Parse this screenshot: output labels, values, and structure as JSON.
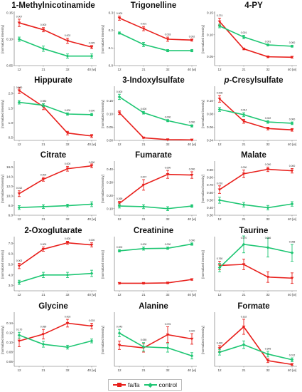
{
  "colors": {
    "fafa": "#e8201c",
    "control": "#1ec673"
  },
  "legend": {
    "fafa": "fa/fa",
    "control": "control"
  },
  "chart_data": [
    {
      "type": "line",
      "title": "1-Methylnicotinamide",
      "ylabel": "[normalized intensity]",
      "x": [
        "12",
        "21",
        "32",
        "40 [w]"
      ],
      "ylim": [
        0.05,
        0.15
      ],
      "yticks": [
        "0.05",
        "0.10",
        "0.15"
      ],
      "pvalues": [
        "0.007",
        "0.000",
        "0.002",
        "0.025"
      ],
      "series": [
        {
          "name": "fa/fa",
          "values": [
            0.131,
            0.118,
            0.097,
            0.085
          ],
          "err": [
            0.007,
            0.004,
            0.005,
            0.003
          ]
        },
        {
          "name": "control",
          "values": [
            0.1,
            0.082,
            0.068,
            0.068
          ],
          "err": [
            0.004,
            0.005,
            0.004,
            0.004
          ]
        }
      ]
    },
    {
      "type": "line",
      "title": "Trigonelline",
      "ylabel": "[normalized intensity]",
      "x": [
        "12",
        "21",
        "32",
        "40 [w]"
      ],
      "ylim": [
        0.0,
        0.3
      ],
      "yticks": [
        "0.0",
        "0.1",
        "0.2",
        "0.3"
      ],
      "pvalues": [
        "0.000",
        "0.001",
        "0.018",
        "0.002"
      ],
      "series": [
        {
          "name": "fa/fa",
          "values": [
            0.27,
            0.21,
            0.15,
            0.145
          ],
          "err": [
            0.012,
            0.012,
            0.012,
            0.006
          ]
        },
        {
          "name": "control",
          "values": [
            0.185,
            0.12,
            0.085,
            0.085
          ],
          "err": [
            0.006,
            0.012,
            0.006,
            0.006
          ]
        }
      ]
    },
    {
      "type": "line",
      "title": "4-PY",
      "ylabel": "[normalized intensity]",
      "x": [
        "12",
        "21",
        "32",
        "40 [w]"
      ],
      "ylim": [
        0.03,
        0.15
      ],
      "yticks": [
        "0.05",
        "0.10",
        "0.15"
      ],
      "pvalues": [
        "0.274",
        "0.001",
        "0.001",
        "0.000"
      ],
      "series": [
        {
          "name": "fa/fa",
          "values": [
            0.13,
            0.068,
            0.05,
            0.049
          ],
          "err": [
            0.008,
            0.002,
            0.002,
            0.002
          ]
        },
        {
          "name": "control",
          "values": [
            0.12,
            0.095,
            0.077,
            0.074
          ],
          "err": [
            0.004,
            0.004,
            0.002,
            0.002
          ]
        }
      ]
    },
    {
      "type": "line",
      "title": "Hippurate",
      "ylabel": "[normalized intensity]",
      "x": [
        "12",
        "21",
        "32",
        "40 [w]"
      ],
      "ylim": [
        0.4,
        2.2
      ],
      "yticks": [
        "0.5",
        "1.0",
        "1.5",
        "2.0"
      ],
      "pvalues": [
        "0.000",
        "0.980",
        "0.000",
        "0.000"
      ],
      "series": [
        {
          "name": "fa/fa",
          "values": [
            2.1,
            1.55,
            0.65,
            0.55
          ],
          "err": [
            0.1,
            0.1,
            0.06,
            0.05
          ]
        },
        {
          "name": "control",
          "values": [
            1.7,
            1.6,
            1.3,
            1.28
          ],
          "err": [
            0.06,
            0.05,
            0.04,
            0.04
          ]
        }
      ]
    },
    {
      "type": "line",
      "title": "3-Indoxylsulfate",
      "ylabel": "[normalized intensity]",
      "x": [
        "12",
        "21",
        "32",
        "40 [w]"
      ],
      "ylim": [
        0.0,
        0.2
      ],
      "yticks": [
        "0.00",
        "0.05",
        "0.10",
        "0.15"
      ],
      "pvalues": [
        "0.000",
        "0.000",
        "0.000",
        "0.000"
      ],
      "series": [
        {
          "name": "fa/fa",
          "values": [
            0.105,
            0.01,
            0.003,
            0.002
          ],
          "err": [
            0.007,
            0.002,
            0.001,
            0.001
          ]
        },
        {
          "name": "control",
          "values": [
            0.165,
            0.105,
            0.075,
            0.055
          ],
          "err": [
            0.01,
            0.005,
            0.004,
            0.004
          ]
        }
      ]
    },
    {
      "type": "line",
      "title": "p-Cresylsulfate",
      "ylabel": "[normalized intensity]",
      "x": [
        "12",
        "21",
        "32",
        "40 [w]"
      ],
      "ylim": [
        0.04,
        0.12
      ],
      "yticks": [
        "0.04",
        "0.06",
        "0.08",
        "0.10"
      ],
      "pvalues": [
        "0.008",
        "0.044",
        "0.022",
        "0.000"
      ],
      "series": [
        {
          "name": "fa/fa",
          "values": [
            0.103,
            0.069,
            0.058,
            0.056
          ],
          "err": [
            0.005,
            0.003,
            0.002,
            0.002
          ]
        },
        {
          "name": "control",
          "values": [
            0.087,
            0.079,
            0.068,
            0.066
          ],
          "err": [
            0.003,
            0.003,
            0.002,
            0.002
          ]
        }
      ]
    },
    {
      "type": "line",
      "title": "Citrate",
      "ylabel": "[normalized intensity]",
      "x": [
        "12",
        "21",
        "32",
        "40 [w]"
      ],
      "ylim": [
        6.0,
        17.0
      ],
      "yticks": [
        "6.0",
        "8.0",
        "10.0",
        "12.0",
        "14.0",
        "16.0"
      ],
      "pvalues": [
        "0.012",
        "0.000",
        "0.000",
        "0.000"
      ],
      "series": [
        {
          "name": "fa/fa",
          "values": [
            10.5,
            13.5,
            15.7,
            16.3
          ],
          "err": [
            0.6,
            0.4,
            0.5,
            0.4
          ]
        },
        {
          "name": "control",
          "values": [
            7.6,
            7.8,
            8.0,
            8.3
          ],
          "err": [
            0.4,
            0.4,
            0.3,
            0.5
          ]
        }
      ]
    },
    {
      "type": "line",
      "title": "Fumarate",
      "ylabel": "[normalized intensity]",
      "x": [
        "12",
        "21",
        "32",
        "40 [w]"
      ],
      "ylim": [
        0.05,
        0.45
      ],
      "yticks": [
        "0.10",
        "0.20",
        "0.30",
        "0.40"
      ],
      "pvalues": [
        "0.269",
        "0.007",
        "0.000",
        "0.000"
      ],
      "series": [
        {
          "name": "fa/fa",
          "values": [
            0.14,
            0.28,
            0.36,
            0.355
          ],
          "err": [
            0.015,
            0.04,
            0.03,
            0.025
          ]
        },
        {
          "name": "control",
          "values": [
            0.12,
            0.115,
            0.1,
            0.12
          ],
          "err": [
            0.015,
            0.015,
            0.015,
            0.01
          ]
        }
      ]
    },
    {
      "type": "line",
      "title": "Malate",
      "ylabel": "[normalized intensity]",
      "x": [
        "12",
        "21",
        "32",
        "40 [w]"
      ],
      "ylim": [
        0.3,
        1.0
      ],
      "yticks": [
        "0.30",
        "0.40",
        "0.50",
        "0.60",
        "0.70",
        "0.80",
        "0.90"
      ],
      "pvalues": [
        "0.016",
        "0.000",
        "0.000",
        "0.000"
      ],
      "series": [
        {
          "name": "fa/fa",
          "values": [
            0.64,
            0.85,
            0.91,
            0.89
          ],
          "err": [
            0.05,
            0.05,
            0.03,
            0.03
          ]
        },
        {
          "name": "control",
          "values": [
            0.5,
            0.44,
            0.4,
            0.45
          ],
          "err": [
            0.04,
            0.03,
            0.03,
            0.03
          ]
        }
      ]
    },
    {
      "type": "line",
      "title": "2-Oxoglutarate",
      "ylabel": "[normalized intensity]",
      "x": [
        "12",
        "21",
        "32",
        "40 [w]"
      ],
      "ylim": [
        2.5,
        7.5
      ],
      "yticks": [
        "3.0",
        "4.0",
        "5.0",
        "6.0",
        "7.0"
      ],
      "pvalues": [
        "0.002",
        "0.000",
        "0.000",
        "0.000"
      ],
      "series": [
        {
          "name": "fa/fa",
          "values": [
            4.85,
            6.45,
            7.05,
            6.85
          ],
          "err": [
            0.25,
            0.2,
            0.15,
            0.2
          ]
        },
        {
          "name": "control",
          "values": [
            3.3,
            4.0,
            4.0,
            4.15
          ],
          "err": [
            0.2,
            0.25,
            0.25,
            0.3
          ]
        }
      ]
    },
    {
      "type": "line",
      "title": "Creatinine",
      "ylabel": "[normalized intensity]",
      "x": [
        "12",
        "21",
        "32",
        "40 [w]"
      ],
      "ylim": [
        0.25,
        0.95
      ],
      "yticks": [],
      "pvalues": [
        "0.000",
        "0.000",
        "0.000",
        "0.000"
      ],
      "series": [
        {
          "name": "fa/fa",
          "values": [
            0.35,
            0.35,
            0.355,
            0.4
          ],
          "err": [
            0.01,
            0.01,
            0.01,
            0.01
          ]
        },
        {
          "name": "control",
          "values": [
            0.78,
            0.81,
            0.815,
            0.87
          ],
          "err": [
            0.015,
            0.02,
            0.015,
            0.015
          ]
        }
      ]
    },
    {
      "type": "line",
      "title": "Taurine",
      "ylabel": "[normalized intensity]",
      "x": [
        "12",
        "21",
        "32",
        "40 [w]"
      ],
      "ylim": [
        0.5,
        3.0
      ],
      "yticks": [],
      "pvalues": [
        "0.760",
        "0.070",
        "0.036",
        "0.068"
      ],
      "series": [
        {
          "name": "fa/fa",
          "values": [
            1.7,
            1.75,
            1.15,
            1.1
          ],
          "err": [
            0.2,
            0.25,
            0.25,
            0.25
          ]
        },
        {
          "name": "control",
          "values": [
            1.6,
            2.7,
            2.55,
            2.3
          ],
          "err": [
            0.2,
            0.4,
            0.45,
            0.4
          ]
        }
      ]
    },
    {
      "type": "line",
      "title": "Glycine",
      "ylabel": "[normalized intensity]",
      "x": [
        "12",
        "21",
        "32",
        "40 [w]"
      ],
      "ylim": [
        0.05,
        0.16
      ],
      "yticks": [
        "0.06",
        "0.08",
        "0.10",
        "0.12",
        "0.14"
      ],
      "pvalues": [
        "0.170",
        "0.089",
        "0.003",
        "0.003"
      ],
      "series": [
        {
          "name": "fa/fa",
          "values": [
            0.103,
            0.117,
            0.14,
            0.134
          ],
          "err": [
            0.012,
            0.01,
            0.008,
            0.006
          ]
        },
        {
          "name": "control",
          "values": [
            0.115,
            0.096,
            0.09,
            0.103
          ],
          "err": [
            0.006,
            0.006,
            0.004,
            0.004
          ]
        }
      ]
    },
    {
      "type": "line",
      "title": "Alanine",
      "ylabel": "[normalized intensity]",
      "x": [
        "12",
        "21",
        "32",
        "40 [w]"
      ],
      "ylim": [
        0.08,
        0.18
      ],
      "yticks": [],
      "pvalues": [
        "0.043",
        "0.055",
        "0.076",
        "0.020"
      ],
      "series": [
        {
          "name": "fa/fa",
          "values": [
            0.12,
            0.115,
            0.14,
            0.132
          ],
          "err": [
            0.008,
            0.008,
            0.015,
            0.01
          ]
        },
        {
          "name": "control",
          "values": [
            0.143,
            0.117,
            0.115,
            0.1
          ],
          "err": [
            0.007,
            0.008,
            0.008,
            0.006
          ]
        }
      ]
    },
    {
      "type": "line",
      "title": "Formate",
      "ylabel": "[normalized intensity]",
      "x": [
        "12",
        "21",
        "32",
        "40 [w]"
      ],
      "ylim": [
        0.0,
        0.28
      ],
      "yticks": [],
      "pvalues": [
        "0.426",
        "0.132",
        "0.345",
        "0.012"
      ],
      "series": [
        {
          "name": "fa/fa",
          "values": [
            0.095,
            0.21,
            0.03,
            0.01
          ],
          "err": [
            0.015,
            0.04,
            0.01,
            0.005
          ]
        },
        {
          "name": "control",
          "values": [
            0.075,
            0.115,
            0.065,
            0.035
          ],
          "err": [
            0.015,
            0.02,
            0.015,
            0.01
          ]
        }
      ]
    }
  ]
}
